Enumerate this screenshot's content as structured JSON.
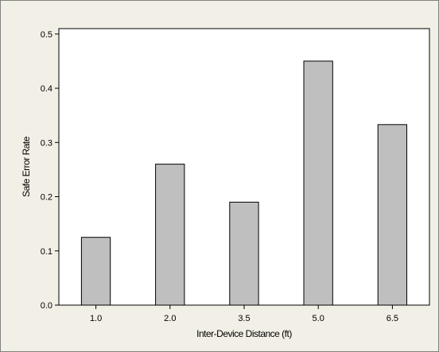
{
  "chart_data": {
    "type": "bar",
    "title": "",
    "xlabel": "Inter-Device Distance (ft)",
    "ylabel": "Safe Error Rate",
    "categories": [
      "1.0",
      "2.0",
      "3.5",
      "5.0",
      "6.5"
    ],
    "values": [
      0.125,
      0.26,
      0.19,
      0.45,
      0.333
    ],
    "ylim": [
      0,
      0.51
    ],
    "yticks": [
      "0.0",
      "0.1",
      "0.2",
      "0.3",
      "0.4",
      "0.5"
    ],
    "ytick_values": [
      0,
      0.1,
      0.2,
      0.3,
      0.4,
      0.5
    ],
    "grid": false,
    "legend": "none",
    "colors": {
      "bar_fill": "#bfbfbf",
      "bar_stroke": "#000000",
      "plot_background": "#ffffff",
      "frame_background": "#f2efe6"
    }
  }
}
